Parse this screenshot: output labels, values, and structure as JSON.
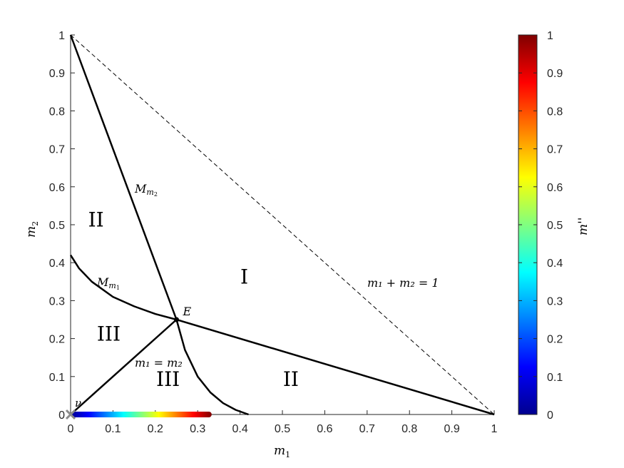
{
  "chart_data": {
    "type": "line",
    "title": "",
    "xlabel": "m",
    "xlabel_sub": "1",
    "ylabel": "m",
    "ylabel_sub": "2",
    "xlim": [
      0,
      1
    ],
    "ylim": [
      0,
      1
    ],
    "x_ticks": [
      "0",
      "0.1",
      "0.2",
      "0.3",
      "0.4",
      "0.5",
      "0.6",
      "0.7",
      "0.8",
      "0.9",
      "1"
    ],
    "y_ticks": [
      "0",
      "0.1",
      "0.2",
      "0.3",
      "0.4",
      "0.5",
      "0.6",
      "0.7",
      "0.8",
      "0.9",
      "1"
    ],
    "grid": false,
    "series": [
      {
        "name": "M_m2",
        "style": "solid",
        "x": [
          0,
          0.25
        ],
        "y": [
          1,
          0.25
        ]
      },
      {
        "name": "M_m1",
        "style": "solid",
        "x": [
          0,
          0.02,
          0.05,
          0.1,
          0.15,
          0.2,
          0.25,
          1
        ],
        "y": [
          0.42,
          0.385,
          0.35,
          0.31,
          0.285,
          0.265,
          0.25,
          0
        ]
      },
      {
        "name": "m1 = m2",
        "style": "solid",
        "x": [
          0,
          0.25
        ],
        "y": [
          0,
          0.25
        ]
      },
      {
        "name": "lower curve",
        "style": "solid",
        "x": [
          0.25,
          0.27,
          0.3,
          0.33,
          0.36,
          0.39,
          0.42
        ],
        "y": [
          0.25,
          0.17,
          0.1,
          0.058,
          0.03,
          0.012,
          0
        ]
      },
      {
        "name": "m1 + m2 = 1",
        "style": "dashed",
        "x": [
          0,
          1
        ],
        "y": [
          1,
          0
        ]
      }
    ],
    "points": [
      {
        "label": "E",
        "x": 0.25,
        "y": 0.25
      },
      {
        "label": "ν",
        "x": 0,
        "y": 0
      }
    ],
    "colored_segment": {
      "x_start": 0,
      "x_end": 0.333,
      "y": 0,
      "color_value_start": 0,
      "color_value_end": 1
    },
    "region_labels": [
      {
        "text": "I",
        "x": 0.41,
        "y": 0.345
      },
      {
        "text": "II",
        "x": 0.06,
        "y": 0.495
      },
      {
        "text": "II",
        "x": 0.52,
        "y": 0.075
      },
      {
        "text": "III",
        "x": 0.09,
        "y": 0.195
      },
      {
        "text": "III",
        "x": 0.23,
        "y": 0.075
      }
    ],
    "curve_labels": {
      "mm2_main": "M",
      "mm2_sub": "m",
      "mm2_subsub": "2",
      "mm1_main": "M",
      "mm1_sub": "m",
      "mm1_subsub": "1",
      "eq_line": "m",
      "eq_sum_text": "m₁ + m₂ = 1",
      "eq_diag_text": "m₁ = m₂"
    },
    "colorbar": {
      "label": "m''",
      "ticks": [
        "0",
        "0.1",
        "0.2",
        "0.3",
        "0.4",
        "0.5",
        "0.6",
        "0.7",
        "0.8",
        "0.9",
        "1"
      ],
      "range": [
        0,
        1
      ],
      "colormap": "jet"
    }
  }
}
